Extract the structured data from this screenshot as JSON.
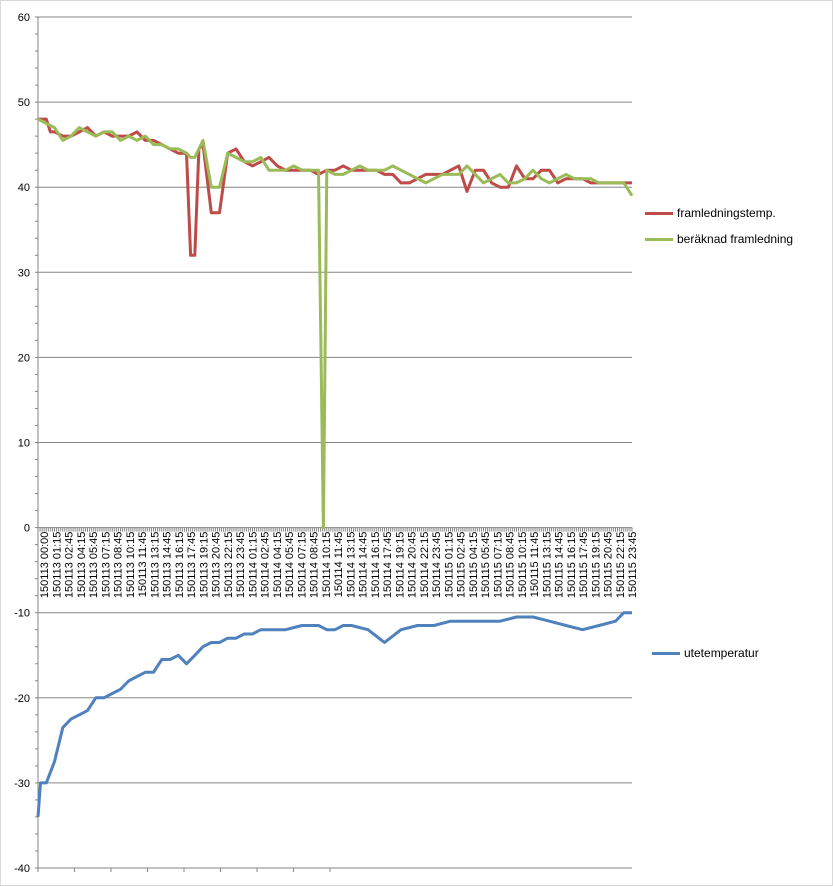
{
  "chart_data": {
    "type": "line",
    "title": "",
    "xlabel": "",
    "ylabel": "",
    "ylim": [
      -40,
      60
    ],
    "yticks": [
      60,
      50,
      40,
      30,
      20,
      10,
      0,
      -10,
      -20,
      -30,
      -40
    ],
    "grid": true,
    "legend_position": "right",
    "x_tick_labels": [
      "150113 00:00",
      "150113 01:15",
      "150113 02:45",
      "150113 04:15",
      "150113 05:45",
      "150113 07:15",
      "150113 08:45",
      "150113 10:15",
      "150113 11:45",
      "150113 13:15",
      "150113 14:45",
      "150113 16:15",
      "150113 17:45",
      "150113 19:15",
      "150113 20:45",
      "150113 22:15",
      "150113 23:45",
      "150114 01:15",
      "150114 02:45",
      "150114 04:15",
      "150114 05:45",
      "150114 07:15",
      "150114 08:45",
      "150114 10:15",
      "150114 11:45",
      "150114 13:15",
      "150114 14:45",
      "150114 16:15",
      "150114 17:45",
      "150114 19:15",
      "150114 20:45",
      "150114 22:15",
      "150114 23:45",
      "150115 01:15",
      "150115 02:45",
      "150115 04:15",
      "150115 05:45",
      "150115 07:15",
      "150115 08:45",
      "150115 10:15",
      "150115 11:45",
      "150115 13:15",
      "150115 14:45",
      "150115 16:15",
      "150115 17:45",
      "150115 19:15",
      "150115 20:45",
      "150115 22:15",
      "150115 23:45"
    ],
    "x_hours": [
      0,
      72
    ],
    "series": [
      {
        "name": "framledningstemp.",
        "color": "#be4b48",
        "x": [
          0,
          1,
          1.5,
          2,
          3,
          3.5,
          4,
          5,
          6,
          7,
          8,
          9,
          10,
          11,
          12,
          13,
          14,
          15,
          16,
          17,
          18,
          18.5,
          19,
          19.5,
          20,
          21,
          22,
          23,
          24,
          25,
          26,
          27,
          28,
          29,
          30,
          31,
          32,
          33,
          34,
          35,
          36,
          37,
          38,
          39,
          40,
          41,
          42,
          43,
          44,
          45,
          46,
          47,
          48,
          49,
          50,
          51,
          52,
          53,
          54,
          55,
          56,
          57,
          58,
          59,
          60,
          61,
          62,
          63,
          64,
          65,
          66,
          67,
          68,
          69,
          70,
          71,
          72
        ],
        "values": [
          48,
          48,
          46.5,
          46.5,
          46,
          46,
          46,
          46.5,
          47,
          46,
          46.5,
          46,
          46,
          46,
          46.5,
          45.5,
          45.5,
          45,
          44.5,
          44,
          44,
          32,
          32,
          44.5,
          45,
          37,
          37,
          44,
          44.5,
          43,
          42.5,
          43,
          43.5,
          42.5,
          42,
          42,
          42,
          42,
          41.5,
          42,
          42,
          42.5,
          42,
          42,
          42,
          42,
          41.5,
          41.5,
          40.5,
          40.5,
          41,
          41.5,
          41.5,
          41.5,
          42,
          42.5,
          39.5,
          42,
          42,
          40.5,
          40,
          40,
          42.5,
          41,
          41,
          42,
          42,
          40.5,
          41,
          41,
          41,
          40.5,
          40.5,
          40.5,
          40.5,
          40.5,
          40.5
        ]
      },
      {
        "name": "beräknad framledning",
        "color": "#9bbb59",
        "x": [
          0,
          1,
          2,
          3,
          4,
          5,
          6,
          7,
          8,
          9,
          10,
          11,
          12,
          13,
          14,
          15,
          16,
          17,
          18,
          18.5,
          19,
          20,
          21,
          22,
          23,
          24,
          25,
          26,
          27,
          28,
          29,
          30,
          31,
          32,
          33,
          34,
          34.6,
          35,
          36,
          37,
          38,
          39,
          40,
          41,
          42,
          43,
          44,
          45,
          46,
          47,
          48,
          49,
          50,
          51,
          52,
          53,
          54,
          55,
          56,
          57,
          58,
          59,
          60,
          61,
          62,
          63,
          64,
          65,
          66,
          67,
          68,
          69,
          70,
          71,
          72
        ],
        "values": [
          48,
          47.5,
          47,
          45.5,
          46,
          47,
          46.5,
          46,
          46.5,
          46.5,
          45.5,
          46,
          45.5,
          46,
          45,
          45,
          44.5,
          44.5,
          44,
          43.5,
          43.5,
          45.5,
          40,
          40,
          44,
          43.5,
          43,
          43,
          43.5,
          42,
          42,
          42,
          42.5,
          42,
          42,
          42,
          0,
          42,
          41.5,
          41.5,
          42,
          42.5,
          42,
          42,
          42,
          42.5,
          42,
          41.5,
          41,
          40.5,
          41,
          41.5,
          41.5,
          41.5,
          42.5,
          41.5,
          40.5,
          41,
          41.5,
          40.5,
          40.5,
          41,
          42,
          41,
          40.5,
          41,
          41.5,
          41,
          41,
          41,
          40.5,
          40.5,
          40.5,
          40.5,
          39
        ]
      },
      {
        "name": "utetemperatur",
        "color": "#4f81bd",
        "x": [
          0,
          0.3,
          1,
          2,
          3,
          4,
          5,
          6,
          7,
          8,
          9,
          10,
          11,
          12,
          13,
          14,
          15,
          16,
          17,
          18,
          19,
          20,
          21,
          22,
          23,
          24,
          25,
          26,
          27,
          28,
          30,
          32,
          34,
          35,
          36,
          37,
          38,
          40,
          42,
          44,
          46,
          48,
          50,
          52,
          54,
          56,
          58,
          60,
          62,
          64,
          66,
          68,
          70,
          71,
          72
        ],
        "values": [
          -34,
          -30,
          -30,
          -27.5,
          -23.5,
          -22.5,
          -22,
          -21.5,
          -20,
          -20,
          -19.5,
          -19,
          -18,
          -17.5,
          -17,
          -17,
          -15.5,
          -15.5,
          -15,
          -16,
          -15,
          -14,
          -13.5,
          -13.5,
          -13,
          -13,
          -12.5,
          -12.5,
          -12,
          -12,
          -12,
          -11.5,
          -11.5,
          -12,
          -12,
          -11.5,
          -11.5,
          -12,
          -13.5,
          -12,
          -11.5,
          -11.5,
          -11,
          -11,
          -11,
          -11,
          -10.5,
          -10.5,
          -11,
          -11.5,
          -12,
          -11.5,
          -11,
          -10,
          -10
        ]
      }
    ]
  }
}
